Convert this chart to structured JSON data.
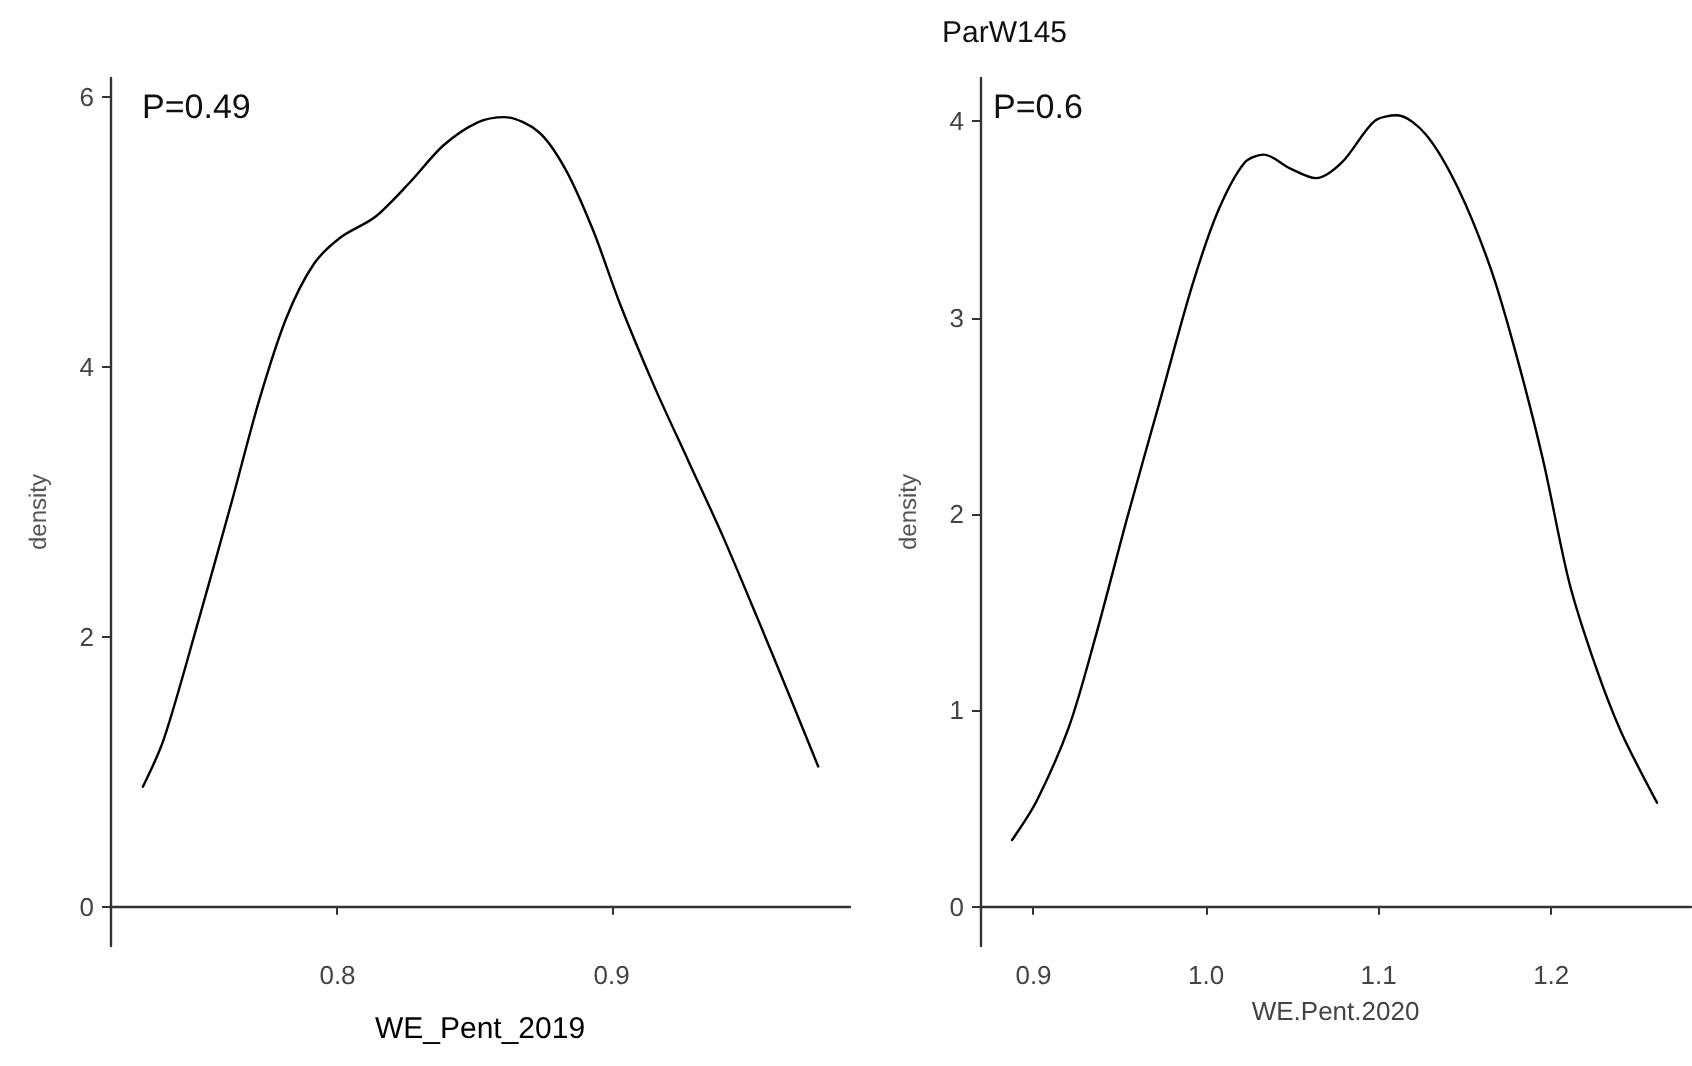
{
  "chart_data": [
    {
      "type": "line",
      "xlabel": "WE_Pent_2019",
      "ylabel": "density",
      "annotations": [
        "P=0.49"
      ],
      "marker": "none",
      "grid": false,
      "xlim": [
        0.717,
        0.987
      ],
      "ylim": [
        -0.29,
        6.14
      ],
      "xticks": [
        0.8,
        0.9
      ],
      "yticks": [
        0,
        2,
        4,
        6
      ],
      "series": [
        {
          "color": "#000000",
          "x": [
            0.729,
            0.7366,
            0.749,
            0.7614,
            0.7714,
            0.7813,
            0.7913,
            0.8012,
            0.8137,
            0.8261,
            0.8386,
            0.851,
            0.861,
            0.8734,
            0.8833,
            0.8933,
            0.9032,
            0.9157,
            0.9281,
            0.9405,
            0.953,
            0.9654,
            0.9754
          ],
          "values": [
            0.89,
            1.24,
            2.1,
            3.0,
            3.75,
            4.36,
            4.76,
            4.96,
            5.11,
            5.36,
            5.64,
            5.81,
            5.85,
            5.74,
            5.46,
            5.01,
            4.46,
            3.85,
            3.3,
            2.75,
            2.15,
            1.54,
            1.04
          ]
        }
      ]
    },
    {
      "type": "line",
      "title": "ParW145",
      "xlabel": "WE.Pent.2020",
      "ylabel": "density",
      "annotations": [
        "P=0.6"
      ],
      "marker": "none",
      "grid": false,
      "xlim": [
        0.869,
        1.281
      ],
      "ylim": [
        -0.2,
        4.22
      ],
      "xticks": [
        0.9,
        {
          "value": 1,
          "label": "1.0"
        },
        1.1,
        1.2
      ],
      "yticks": [
        0,
        1,
        2,
        3,
        4
      ],
      "series": [
        {
          "color": "#000000",
          "x": [
            0.8876,
            0.9019,
            0.9207,
            0.9358,
            0.9546,
            0.9734,
            0.9922,
            1.0073,
            1.0224,
            1.0336,
            1.0486,
            1.0637,
            1.0787,
            1.0976,
            1.1107,
            1.1276,
            1.1465,
            1.1653,
            1.1804,
            1.1954,
            1.2105,
            1.2255,
            1.2405,
            1.2613
          ],
          "values": [
            0.34,
            0.54,
            0.92,
            1.37,
            1.99,
            2.58,
            3.17,
            3.55,
            3.79,
            3.83,
            3.76,
            3.71,
            3.79,
            4.0,
            4.03,
            3.93,
            3.65,
            3.24,
            2.79,
            2.27,
            1.65,
            1.23,
            0.89,
            0.53
          ]
        }
      ]
    }
  ]
}
